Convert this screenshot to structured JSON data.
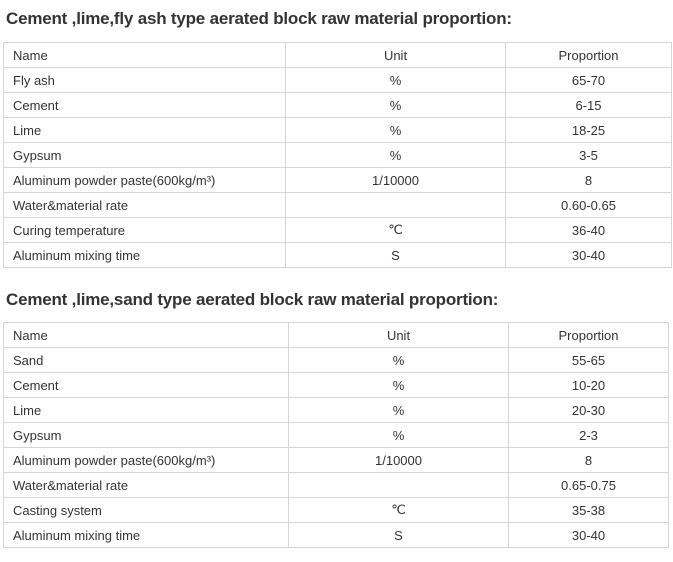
{
  "sections": [
    {
      "title": "Cement ,lime,fly ash type aerated block raw material proportion:",
      "headers": [
        "Name",
        "Unit",
        "Proportion"
      ],
      "rows": [
        [
          "Fly ash",
          "%",
          "65-70"
        ],
        [
          "Cement",
          "%",
          "6-15"
        ],
        [
          "Lime",
          "%",
          "18-25"
        ],
        [
          "Gypsum",
          "%",
          "3-5"
        ],
        [
          "Aluminum powder paste(600kg/m³)",
          "1/10000",
          "8"
        ],
        [
          "Water&material rate",
          "",
          "0.60-0.65"
        ],
        [
          "Curing temperature",
          "℃",
          "36-40"
        ],
        [
          "Aluminum mixing time",
          "S",
          "30-40"
        ]
      ]
    },
    {
      "title": "Cement ,lime,sand type aerated block raw material proportion:",
      "headers": [
        "Name",
        "Unit",
        "Proportion"
      ],
      "rows": [
        [
          "Sand",
          "%",
          "55-65"
        ],
        [
          "Cement",
          "%",
          "10-20"
        ],
        [
          "Lime",
          "%",
          "20-30"
        ],
        [
          "Gypsum",
          "%",
          "2-3"
        ],
        [
          "Aluminum powder paste(600kg/m³)",
          "1/10000",
          "8"
        ],
        [
          "Water&material rate",
          "",
          "0.65-0.75"
        ],
        [
          "Casting system",
          "℃",
          "35-38"
        ],
        [
          "Aluminum mixing time",
          "S",
          "30-40"
        ]
      ]
    }
  ]
}
